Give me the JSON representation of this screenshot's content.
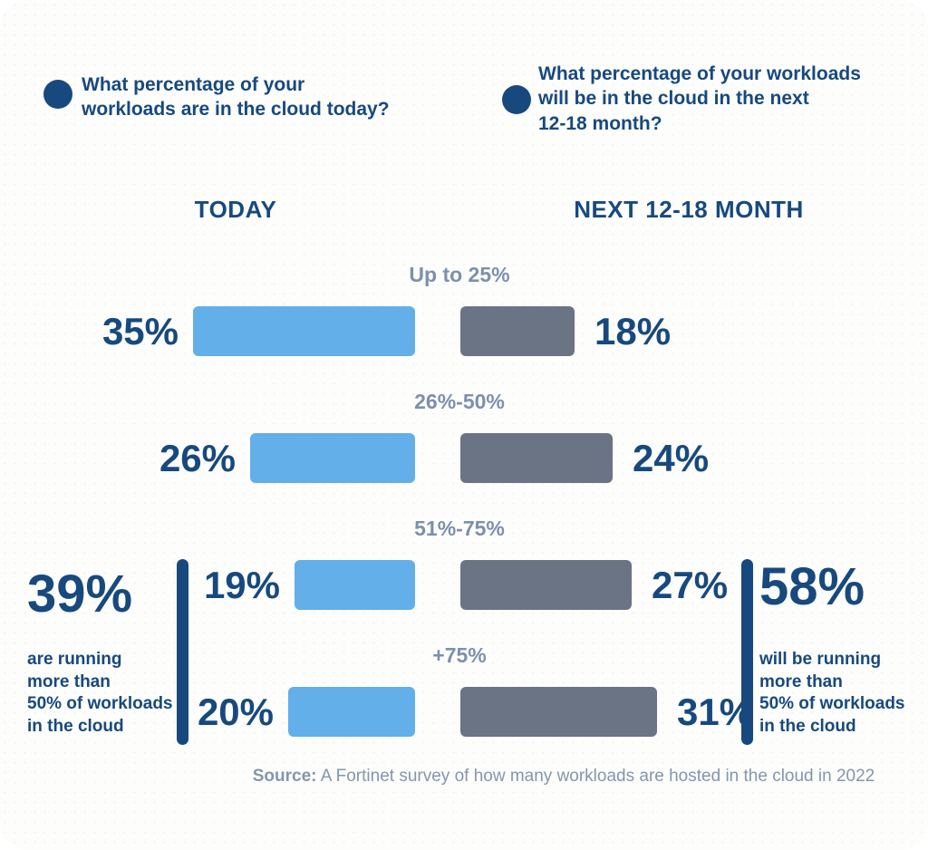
{
  "questions": {
    "left": "What percentage of your\nworkloads are in the cloud today?",
    "right": "What percentage of your workloads\nwill be in the cloud in the next\n12-18 month?"
  },
  "headers": {
    "left": "TODAY",
    "right": "NEXT 12-18 MONTH"
  },
  "chart_data": {
    "type": "bar",
    "orientation": "horizontal-paired",
    "categories": [
      "Up to 25%",
      "26%-50%",
      "51%-75%",
      "+75%"
    ],
    "series": [
      {
        "name": "TODAY",
        "values": [
          35,
          26,
          19,
          20
        ]
      },
      {
        "name": "NEXT 12-18 MONTH",
        "values": [
          18,
          24,
          27,
          31
        ]
      }
    ],
    "unit": "%",
    "value_labels_shown": true,
    "legend_position": "column-headers",
    "grid": false
  },
  "callouts": {
    "left": {
      "value": "39%",
      "text": "are running\nmore than\n50% of workloads\nin the cloud"
    },
    "right": {
      "value": "58%",
      "text": "will be running\nmore than\n50% of workloads\nin the cloud"
    }
  },
  "source": {
    "label": "Source:",
    "text": " A Fortinet survey of how many workloads are hosted in the cloud in 2022"
  },
  "colors": {
    "navy": "#17497e",
    "blue_bar": "#62afe9",
    "gray_bar": "#6b7484",
    "category_label": "#7d90ab",
    "source_text": "#8496ad",
    "card_background": "#fdfdfc"
  }
}
